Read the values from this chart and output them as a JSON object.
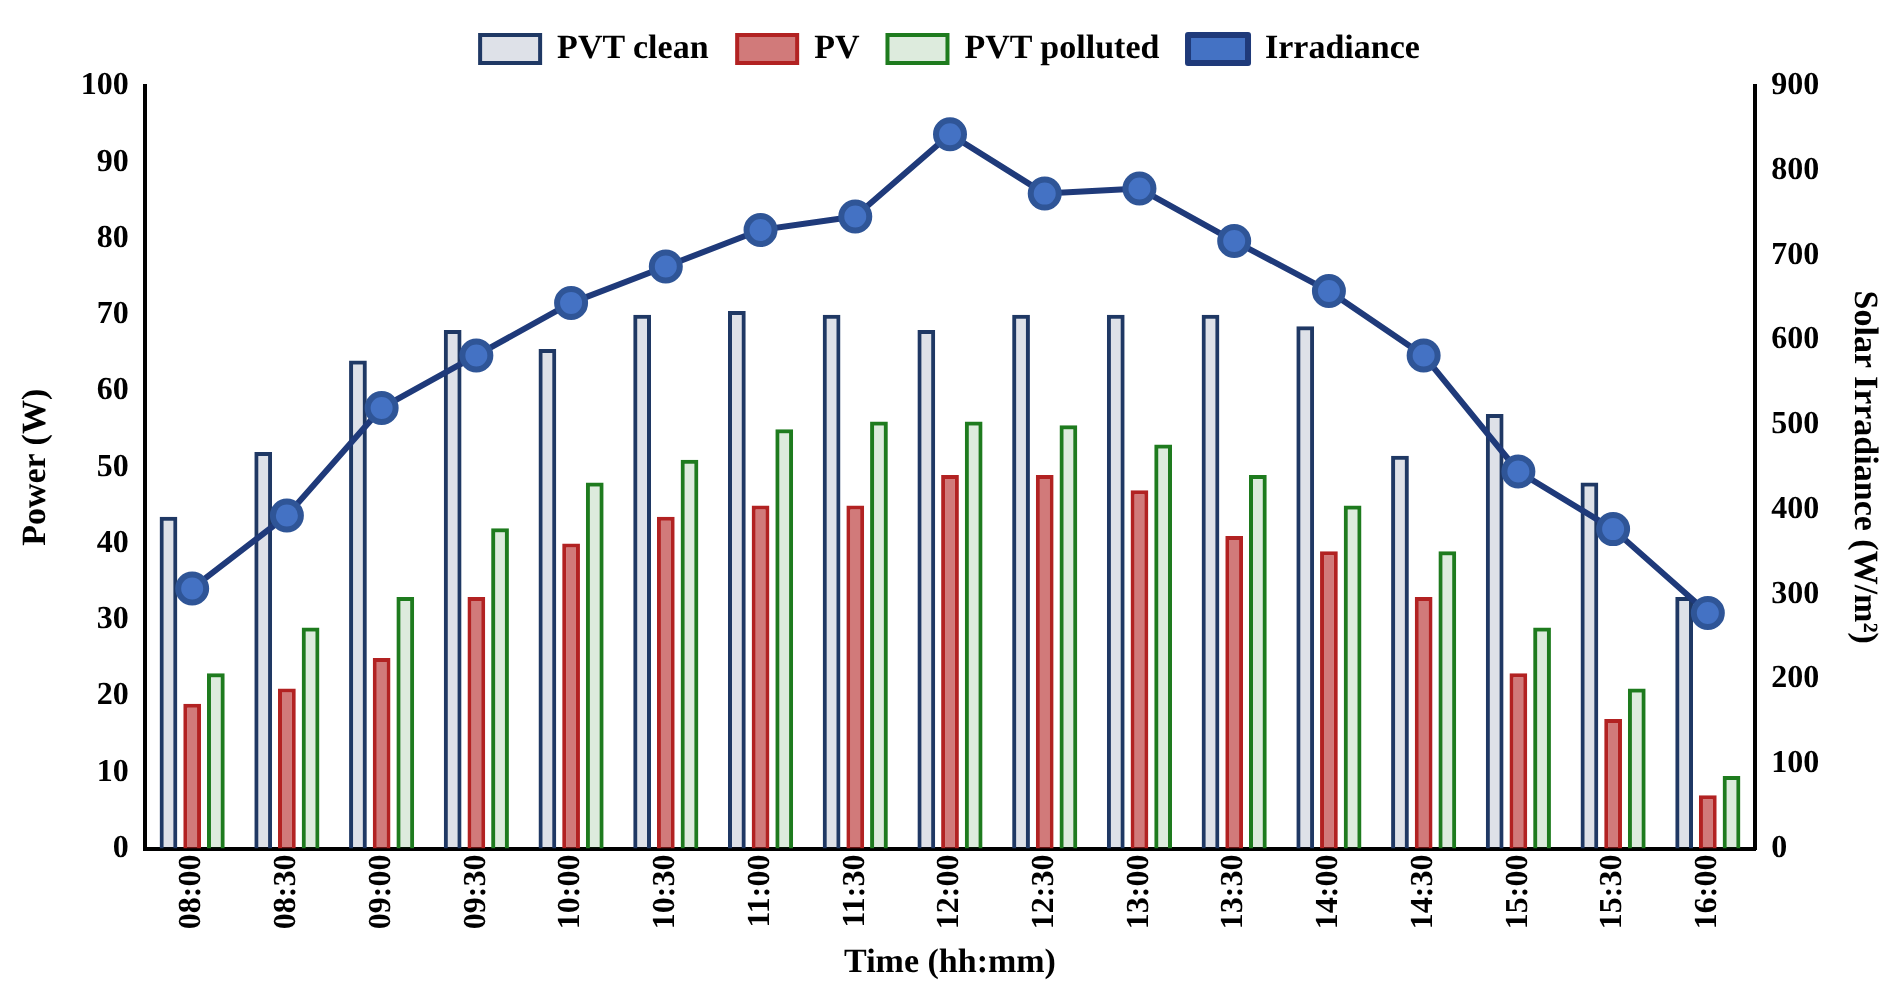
{
  "chart_data": {
    "type": "bar",
    "xlabel": "Time (hh:mm)",
    "ylabel": "Power (W)",
    "y2label": "Solar Irradiance (W/m²)",
    "categories": [
      "08:00",
      "08:30",
      "09:00",
      "09:30",
      "10:00",
      "10:30",
      "11:00",
      "11:30",
      "12:00",
      "12:30",
      "13:00",
      "13:30",
      "14:00",
      "14:30",
      "15:00",
      "15:30",
      "16:00"
    ],
    "series": [
      {
        "name": "PVT clean",
        "color": "#1f3864",
        "values": [
          43.5,
          52,
          64,
          68,
          65.5,
          70,
          70.5,
          70,
          68,
          70,
          70,
          70,
          68.5,
          51.5,
          57,
          48,
          33
        ]
      },
      {
        "name": "PV",
        "color": "#b22222",
        "values": [
          19,
          21,
          25,
          33,
          40,
          43.5,
          45,
          45,
          49,
          49,
          47,
          41,
          39,
          33,
          23,
          17,
          7
        ]
      },
      {
        "name": "PVT polluted",
        "color": "#1e7b1e",
        "values": [
          23,
          29,
          33,
          42,
          48,
          51,
          55,
          56,
          56,
          55.5,
          53,
          49,
          45,
          39,
          29,
          21,
          9.5
        ]
      },
      {
        "name": "Irradiance",
        "type": "line",
        "axis": "y2",
        "color": "#1f3a7a",
        "values": [
          307,
          393,
          520,
          582,
          644,
          687,
          730,
          746,
          843,
          773,
          779,
          717,
          658,
          582,
          445,
          377,
          278
        ]
      }
    ],
    "ylim": [
      0,
      100
    ],
    "yticks": [
      0,
      10,
      20,
      30,
      40,
      50,
      60,
      70,
      80,
      90,
      100
    ],
    "y2lim": [
      0,
      900
    ],
    "y2ticks": [
      0,
      100,
      200,
      300,
      400,
      500,
      600,
      700,
      800,
      900
    ],
    "grid": false,
    "legend": "top",
    "marker": "circle",
    "line_style": "solid"
  }
}
